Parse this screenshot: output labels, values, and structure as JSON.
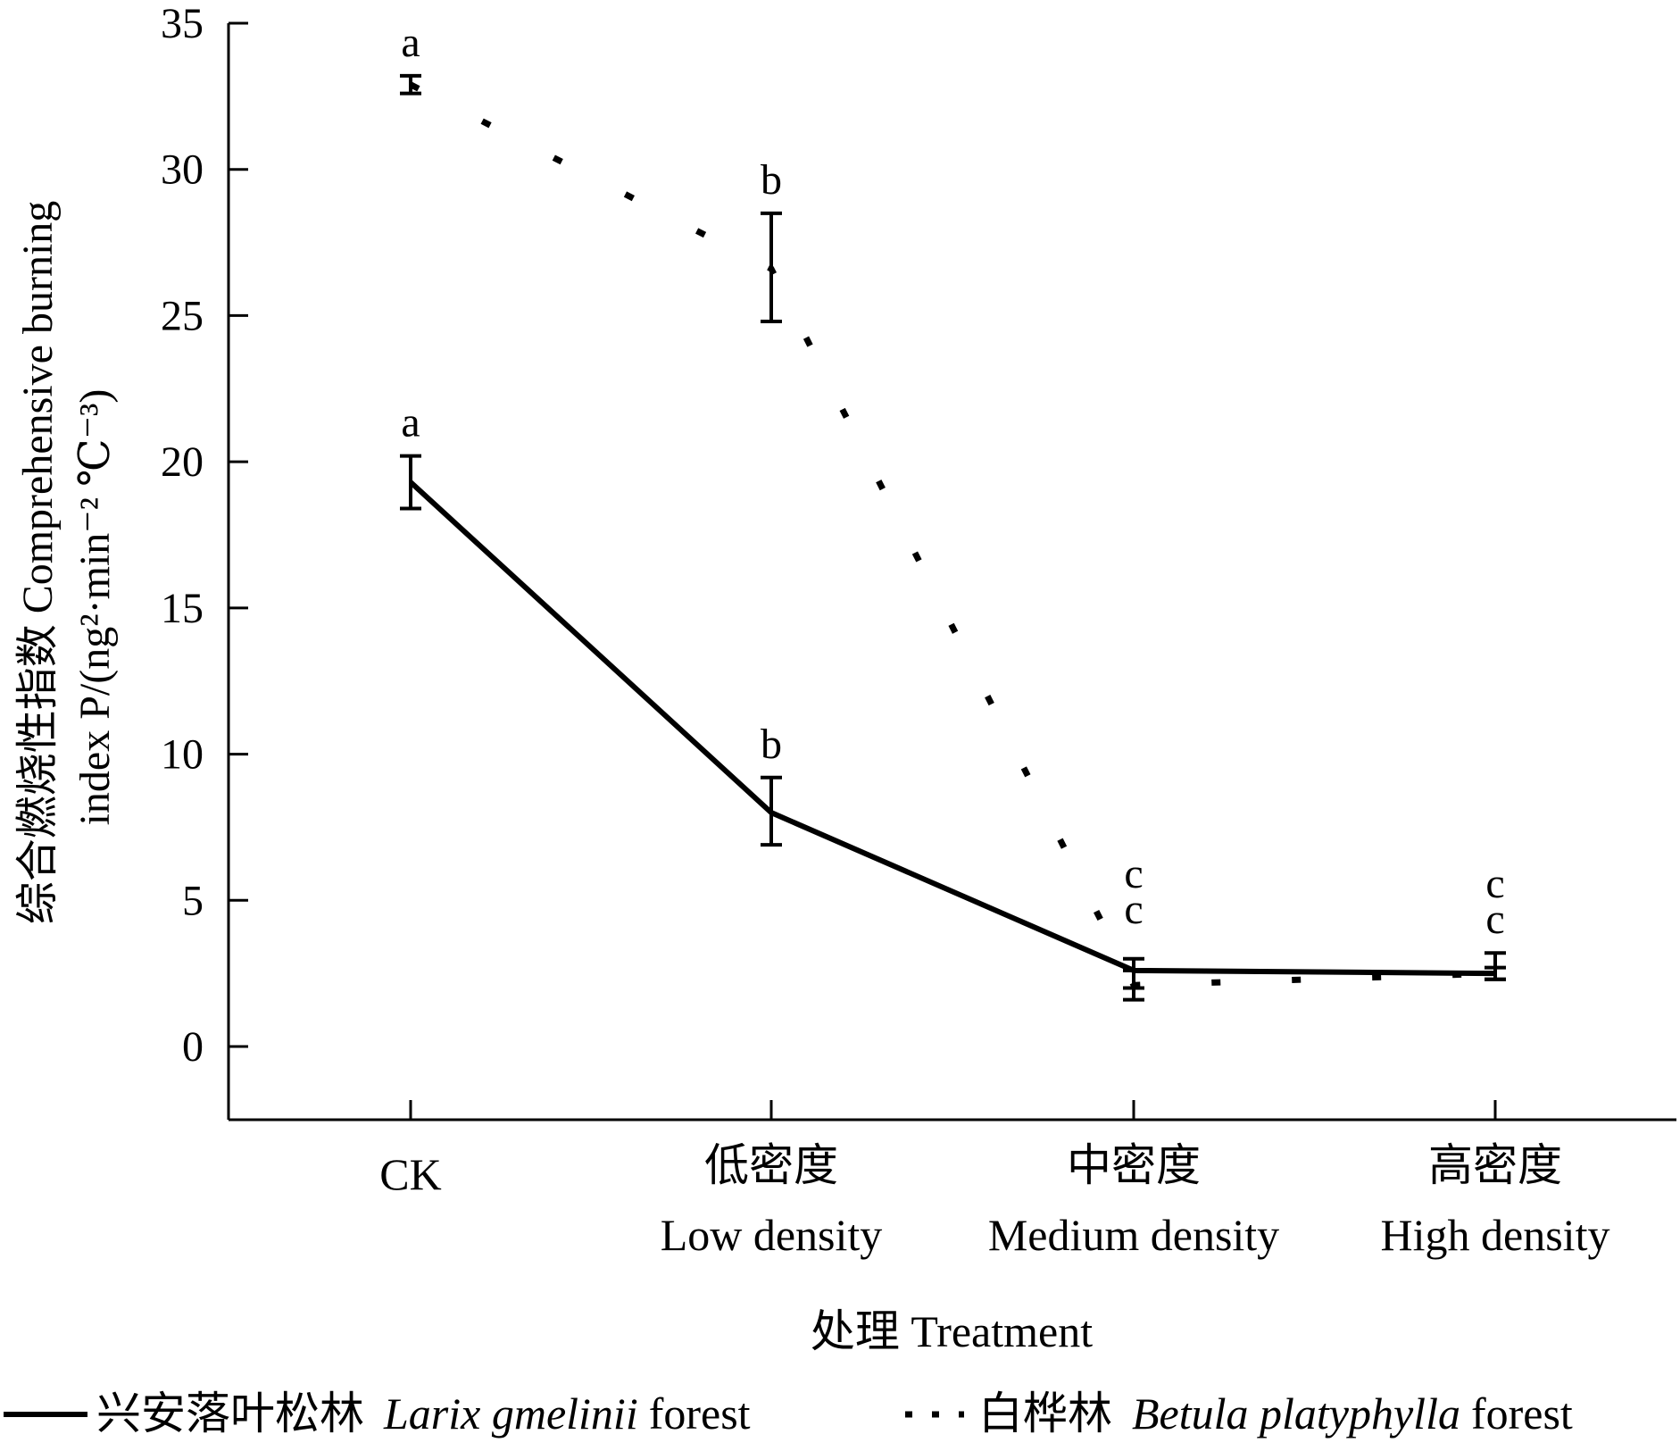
{
  "chart_data": {
    "type": "line",
    "xlabel": "处理  Treatment",
    "ylabel_line1": "综合燃烧性指数  Comprehensive burning",
    "ylabel_line2": "index P/(ng²·min⁻² ℃⁻³)",
    "categories": [
      {
        "zh": "",
        "en": "CK"
      },
      {
        "zh": "低密度",
        "en": "Low density"
      },
      {
        "zh": "中密度",
        "en": "Medium density"
      },
      {
        "zh": "高密度",
        "en": "High density"
      }
    ],
    "yticks": [
      0,
      5,
      10,
      15,
      20,
      25,
      30,
      35
    ],
    "ylim": [
      -2.5,
      35
    ],
    "grid": false,
    "legend_placement": "bottom",
    "series": [
      {
        "name_zh": "兴安落叶松林",
        "name_latin": "Larix gmelinii",
        "name_suffix": "forest",
        "style": "solid",
        "values": [
          19.3,
          8.0,
          2.6,
          2.5
        ],
        "error_low": [
          18.4,
          6.9,
          2.0,
          2.3
        ],
        "error_high": [
          20.2,
          9.2,
          3.0,
          3.2
        ],
        "letters": [
          "a",
          "b",
          "c",
          "c"
        ]
      },
      {
        "name_zh": "白桦林",
        "name_latin": "Betula platyphylla",
        "name_suffix": "forest",
        "style": "dotted",
        "values": [
          32.9,
          26.6,
          2.1,
          2.5
        ],
        "error_low": [
          32.6,
          24.8,
          1.6,
          2.3
        ],
        "error_high": [
          33.2,
          28.5,
          2.6,
          2.7
        ],
        "letters": [
          "a",
          "b",
          "c",
          "c"
        ]
      }
    ]
  }
}
